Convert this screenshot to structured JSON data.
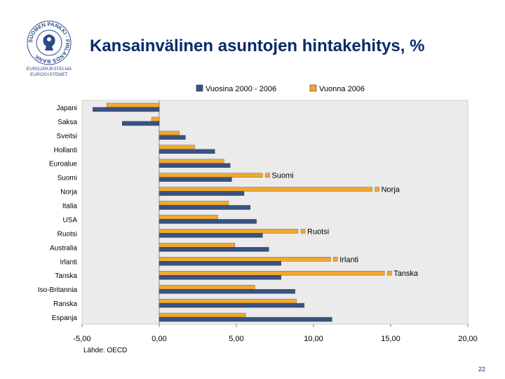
{
  "logo": {
    "ring_text": "SUOMEN PANKKI · FINLANDS BANK",
    "line1": "EUROJÄRJESTELMÄ",
    "line2": "EUROSYSTEMET"
  },
  "title": "Kansainvälinen asuntojen hintakehitys, %",
  "page_number": "22",
  "colors": {
    "series1": "#3a5283",
    "series2": "#f0a830",
    "plot_bg": "#ebebeb",
    "title": "#0a2a6a"
  },
  "chart_data": {
    "type": "bar",
    "orientation": "horizontal",
    "categories": [
      "Japani",
      "Saksa",
      "Sveitsi",
      "Hollanti",
      "Euroalue",
      "Suomi",
      "Norja",
      "Italia",
      "USA",
      "Ruotsi",
      "Australia",
      "Irlanti",
      "Tanska",
      "Iso-Britannia",
      "Ranska",
      "Espanja"
    ],
    "series": [
      {
        "name": "Vuosina 2000 - 2006",
        "values": [
          -4.3,
          -2.4,
          1.7,
          3.6,
          4.6,
          4.7,
          5.5,
          5.9,
          6.3,
          6.7,
          7.1,
          7.9,
          7.9,
          8.8,
          9.4,
          11.2
        ]
      },
      {
        "name": "Vuonna 2006",
        "values": [
          -3.4,
          -0.5,
          1.3,
          2.3,
          4.2,
          6.7,
          13.8,
          4.5,
          3.8,
          9.0,
          4.9,
          11.1,
          14.6,
          6.2,
          8.9,
          5.6
        ]
      }
    ],
    "data_labels": {
      "Suomi": "Suomi",
      "Norja": "Norja",
      "Ruotsi": "Ruotsi",
      "Irlanti": "Irlanti",
      "Tanska": "Tanska"
    },
    "xlim": [
      -5,
      20
    ],
    "ticks": [
      -5,
      0,
      5,
      10,
      15,
      20
    ],
    "tick_labels": [
      "-5,00",
      "0,00",
      "5,00",
      "10,00",
      "15,00",
      "20,00"
    ],
    "source": "Lähde: OECD"
  }
}
